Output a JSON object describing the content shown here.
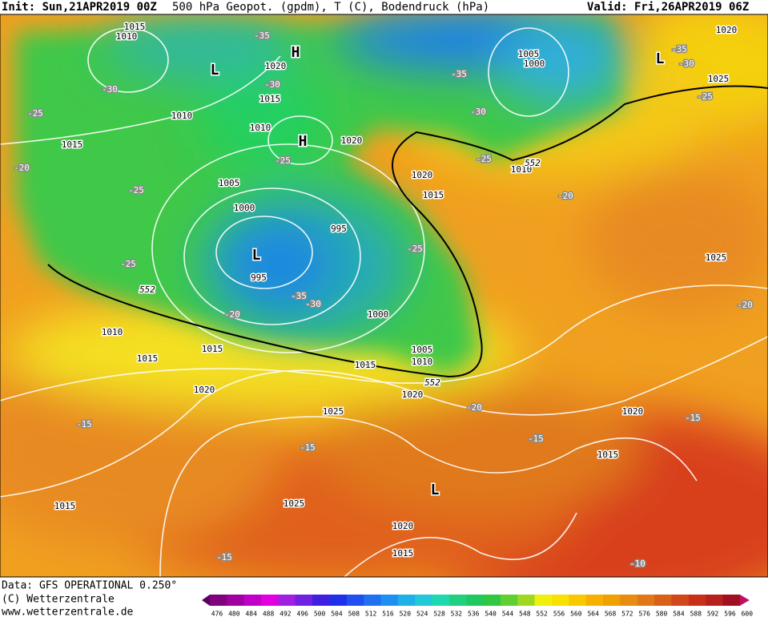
{
  "header": {
    "init": "Init: Sun,21APR2019 00Z",
    "title": "500 hPa Geopot. (gpdm), T (C), Bodendruck (hPa)",
    "valid": "Valid: Fri,26APR2019 06Z"
  },
  "map": {
    "isobar_labels": [
      "1015",
      "1010",
      "1020",
      "1015",
      "1010",
      "1010",
      "1015",
      "1020",
      "1005",
      "1000",
      "1020",
      "1015",
      "995",
      "995",
      "1000",
      "1010",
      "1015",
      "1015",
      "1005",
      "1010",
      "1015",
      "1020",
      "1020",
      "1025",
      "1020",
      "1015",
      "1025",
      "1015",
      "1020",
      "1015",
      "1005",
      "1000",
      "1010",
      "1020",
      "1025",
      "1025"
    ],
    "geopotential_labels": [
      "552",
      "552",
      "552"
    ],
    "temperature_labels": [
      "-35",
      "-30",
      "-25",
      "-30",
      "-35",
      "-30",
      "-25",
      "-20",
      "-25",
      "-25",
      "-25",
      "-25",
      "-35",
      "-30",
      "-20",
      "-35",
      "-30",
      "-25",
      "-20",
      "-20",
      "-20",
      "-15",
      "-15",
      "-15",
      "-15",
      "-15",
      "-10"
    ],
    "pressure_centers": [
      "H",
      "H",
      "L",
      "L",
      "L",
      "L"
    ]
  },
  "footer": {
    "data": "Data: GFS OPERATIONAL 0.250°",
    "copyright": "(C) Wetterzentrale",
    "url": "www.wetterzentrale.de"
  },
  "colorbar": {
    "labels": [
      "476",
      "480",
      "484",
      "488",
      "492",
      "496",
      "500",
      "504",
      "508",
      "512",
      "516",
      "520",
      "524",
      "528",
      "532",
      "536",
      "540",
      "544",
      "548",
      "552",
      "556",
      "560",
      "564",
      "568",
      "572",
      "576",
      "580",
      "584",
      "588",
      "592",
      "596",
      "600"
    ]
  }
}
